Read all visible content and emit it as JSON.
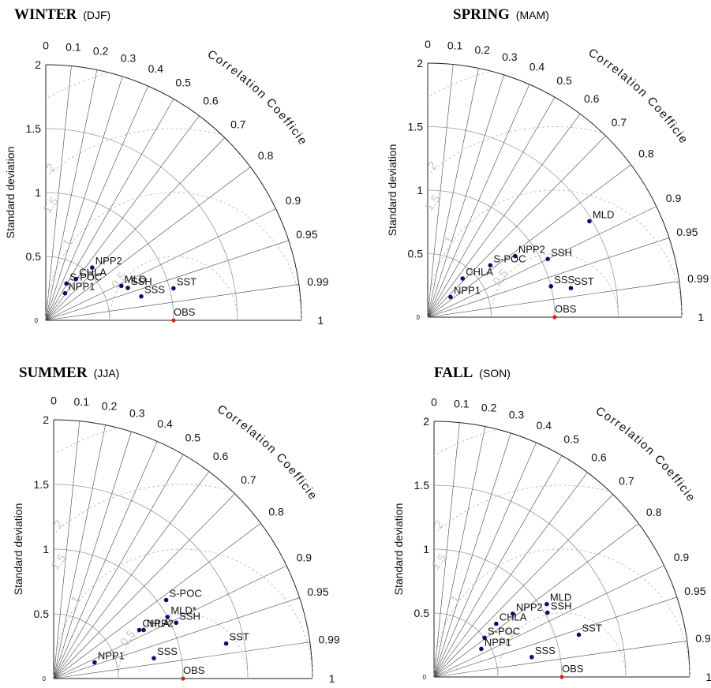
{
  "common": {
    "ylabel": "Standard deviation",
    "arc_label": "Correlation Coefficient",
    "ref_label": "OBS",
    "std_ticks": [
      "0",
      "0.5",
      "1",
      "1.5",
      "2"
    ],
    "corr_ticks": [
      "0",
      "0.1",
      "0.2",
      "0.3",
      "0.4",
      "0.5",
      "0.6",
      "0.7",
      "0.8",
      "0.9",
      "0.95",
      "0.99",
      "1"
    ],
    "rms_labels": [
      "0.5",
      "1",
      "1.5",
      "2"
    ],
    "colors": {
      "point": "#0d0d6b",
      "ref": "#e0201b",
      "grid": "#777777"
    }
  },
  "chart_data": [
    {
      "type": "taylor",
      "title": "WINTER",
      "subtitle": "(DJF)",
      "rlim": [
        0,
        2
      ],
      "ref_std": 1,
      "points": [
        {
          "label": "MLD",
          "corr": 0.91,
          "std": 0.65
        },
        {
          "label": "SSH",
          "corr": 0.93,
          "std": 0.69
        },
        {
          "label": "SSS",
          "corr": 0.97,
          "std": 0.77
        },
        {
          "label": "SST",
          "corr": 0.97,
          "std": 1.03
        },
        {
          "label": "NPP2",
          "corr": 0.66,
          "std": 0.55
        },
        {
          "label": "CHLA",
          "corr": 0.59,
          "std": 0.4
        },
        {
          "label": "S-POC",
          "corr": 0.49,
          "std": 0.33
        },
        {
          "label": "NPP1",
          "corr": 0.58,
          "std": 0.26
        }
      ]
    },
    {
      "type": "taylor",
      "title": "SPRING",
      "subtitle": "(MAM)",
      "rlim": [
        0,
        2
      ],
      "ref_std": 1,
      "points": [
        {
          "label": "MLD",
          "corr": 0.86,
          "std": 1.48
        },
        {
          "label": "SSH",
          "corr": 0.9,
          "std": 1.05
        },
        {
          "label": "SSS",
          "corr": 0.97,
          "std": 1.0
        },
        {
          "label": "SST",
          "corr": 0.98,
          "std": 1.15
        },
        {
          "label": "NPP2",
          "corr": 0.82,
          "std": 0.84
        },
        {
          "label": "S-POC",
          "corr": 0.77,
          "std": 0.64
        },
        {
          "label": "CHLA",
          "corr": 0.67,
          "std": 0.41
        },
        {
          "label": "NPP1",
          "corr": 0.75,
          "std": 0.24
        }
      ]
    },
    {
      "type": "taylor",
      "title": "SUMMER",
      "subtitle": "(JJA)",
      "rlim": [
        0,
        2
      ],
      "ref_std": 1,
      "points": [
        {
          "label": "S-POC",
          "corr": 0.82,
          "std": 1.06
        },
        {
          "label": "MLD*",
          "corr": 0.88,
          "std": 1.0
        },
        {
          "label": "SSH",
          "corr": 0.91,
          "std": 1.04
        },
        {
          "label": "CHLA",
          "corr": 0.87,
          "std": 0.76
        },
        {
          "label": "NPP2",
          "corr": 0.88,
          "std": 0.79
        },
        {
          "label": "SSS",
          "corr": 0.98,
          "std": 0.79
        },
        {
          "label": "SST",
          "corr": 0.98,
          "std": 1.36
        },
        {
          "label": "NPP1",
          "corr": 0.93,
          "std": 0.34
        }
      ]
    },
    {
      "type": "taylor",
      "title": "FALL",
      "subtitle": "(SON)",
      "rlim": [
        0,
        2
      ],
      "ref_std": 1,
      "points": [
        {
          "label": "MLD",
          "corr": 0.84,
          "std": 1.05
        },
        {
          "label": "SSH",
          "corr": 0.87,
          "std": 1.02
        },
        {
          "label": "NPP2",
          "corr": 0.78,
          "std": 0.79
        },
        {
          "label": "CHLA",
          "corr": 0.76,
          "std": 0.64
        },
        {
          "label": "S-POC",
          "corr": 0.79,
          "std": 0.5
        },
        {
          "label": "NPP1",
          "corr": 0.86,
          "std": 0.43
        },
        {
          "label": "SSS",
          "corr": 0.98,
          "std": 0.78
        },
        {
          "label": "SST",
          "corr": 0.96,
          "std": 1.18
        }
      ]
    }
  ]
}
